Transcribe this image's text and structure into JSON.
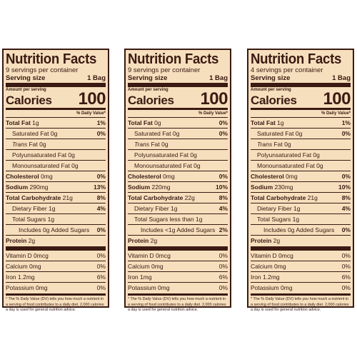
{
  "panels": [
    {
      "title": "Nutrition Facts",
      "servings": "9 servings per container",
      "serving_size_label": "Serving size",
      "serving_size_value": "1 Bag",
      "amount_per_serving": "Amount per serving",
      "calories_label": "Calories",
      "calories_value": "100",
      "dv_header": "% Daily Value*",
      "total_fat": {
        "label": "Total Fat",
        "amount": "1g",
        "dv": "1%"
      },
      "saturated_fat": {
        "label": "Saturated Fat 0g",
        "dv": "0%"
      },
      "trans_fat": {
        "italic": "Trans",
        "rest": " Fat 0g"
      },
      "poly_fat": {
        "label": "Polyunsaturated Fat 0g"
      },
      "mono_fat": {
        "label": "Monounsaturated Fat 0g"
      },
      "cholesterol": {
        "label": "Cholesterol",
        "amount": "0mg",
        "dv": "0%"
      },
      "sodium": {
        "label": "Sodium",
        "amount": "290mg",
        "dv": "13%"
      },
      "carbs": {
        "label": "Total Carbohydrate",
        "amount": "21g",
        "dv": "8%"
      },
      "fiber": {
        "label": "Dietary Fiber 1g",
        "dv": "4%"
      },
      "sugars": {
        "label": "Total Sugars 1g",
        "dv": ""
      },
      "added_sugars": {
        "label": "Includes 0g Added Sugars",
        "dv": "0%"
      },
      "protein": {
        "label": "Protein",
        "amount": "2g"
      },
      "vitamin_d": {
        "label": "Vitamin D 0mcg",
        "dv": "0%"
      },
      "calcium": {
        "label": "Calcium 0mg",
        "dv": "0%"
      },
      "iron": {
        "label": "Iron 1.2mg",
        "dv": "6%"
      },
      "potassium": {
        "label": "Potassium 0mg",
        "dv": "0%"
      },
      "footnote": "* The % Daily Value (DV) tells you how much a nutrient in a serving of food contributes to a daily diet. 2,000 calories a day is used for general nutrition advice."
    },
    {
      "title": "Nutrition Facts",
      "servings": "9 servings per container",
      "serving_size_label": "Serving size",
      "serving_size_value": "1 Bag",
      "amount_per_serving": "Amount per serving",
      "calories_label": "Calories",
      "calories_value": "100",
      "dv_header": "% Daily Value*",
      "total_fat": {
        "label": "Total Fat",
        "amount": "0g",
        "dv": "0%"
      },
      "saturated_fat": {
        "label": "Saturated Fat 0g",
        "dv": "0%"
      },
      "trans_fat": {
        "italic": "Trans",
        "rest": " Fat 0g"
      },
      "poly_fat": {
        "label": "Polyunsaturated Fat 0g"
      },
      "mono_fat": {
        "label": "Monounsaturated Fat 0g"
      },
      "cholesterol": {
        "label": "Cholesterol",
        "amount": "0mg",
        "dv": "0%"
      },
      "sodium": {
        "label": "Sodium",
        "amount": "220mg",
        "dv": "10%"
      },
      "carbs": {
        "label": "Total Carbohydrate",
        "amount": "22g",
        "dv": "8%"
      },
      "fiber": {
        "label": "Dietary Fiber 1g",
        "dv": "4%"
      },
      "sugars": {
        "label": "Total Sugars less than 1g",
        "dv": ""
      },
      "added_sugars": {
        "label": "Includes <1g Added Sugars",
        "dv": "2%"
      },
      "protein": {
        "label": "Protein",
        "amount": "2g"
      },
      "vitamin_d": {
        "label": "Vitamin D 0mcg",
        "dv": "0%"
      },
      "calcium": {
        "label": "Calcium 0mg",
        "dv": "0%"
      },
      "iron": {
        "label": "Iron 1mg",
        "dv": "6%"
      },
      "potassium": {
        "label": "Potassium 0mg",
        "dv": "0%"
      },
      "footnote": "* The % Daily Value (DV) tells you how much a nutrient in a serving of food contributes to a daily diet. 2,000 calories a day is used for general nutrition advice."
    },
    {
      "title": "Nutrition Facts",
      "servings": "4 servings per container",
      "serving_size_label": "Serving size",
      "serving_size_value": "1 Bag",
      "amount_per_serving": "Amount per serving",
      "calories_label": "Calories",
      "calories_value": "100",
      "dv_header": "% Daily Value*",
      "total_fat": {
        "label": "Total Fat",
        "amount": "1g",
        "dv": "1%"
      },
      "saturated_fat": {
        "label": "Saturated Fat 0g",
        "dv": "0%"
      },
      "trans_fat": {
        "italic": "Trans",
        "rest": " Fat 0g"
      },
      "poly_fat": {
        "label": "Polyunsaturated Fat 0g"
      },
      "mono_fat": {
        "label": "Monounsaturated Fat 0g"
      },
      "cholesterol": {
        "label": "Cholesterol",
        "amount": "0mg",
        "dv": "0%"
      },
      "sodium": {
        "label": "Sodium",
        "amount": "230mg",
        "dv": "10%"
      },
      "carbs": {
        "label": "Total Carbohydrate",
        "amount": "21g",
        "dv": "8%"
      },
      "fiber": {
        "label": "Dietary Fiber 1g",
        "dv": "4%"
      },
      "sugars": {
        "label": "Total Sugars 1g",
        "dv": ""
      },
      "added_sugars": {
        "label": "Includes 0g Added Sugars",
        "dv": "0%"
      },
      "protein": {
        "label": "Protein",
        "amount": "2g"
      },
      "vitamin_d": {
        "label": "Vitamin D 0mcg",
        "dv": "0%"
      },
      "calcium": {
        "label": "Calcium 0mg",
        "dv": "0%"
      },
      "iron": {
        "label": "Iron 1.2mg",
        "dv": "6%"
      },
      "potassium": {
        "label": "Potassium 0mg",
        "dv": "0%"
      },
      "footnote": "* The % Daily Value (DV) tells you how much a nutrient in a serving of food contributes to a daily diet. 2,000 calories a day is used for general nutrition advice."
    }
  ],
  "colors": {
    "panel_bg": "#f6dfbd",
    "ink": "#3a1a12"
  }
}
